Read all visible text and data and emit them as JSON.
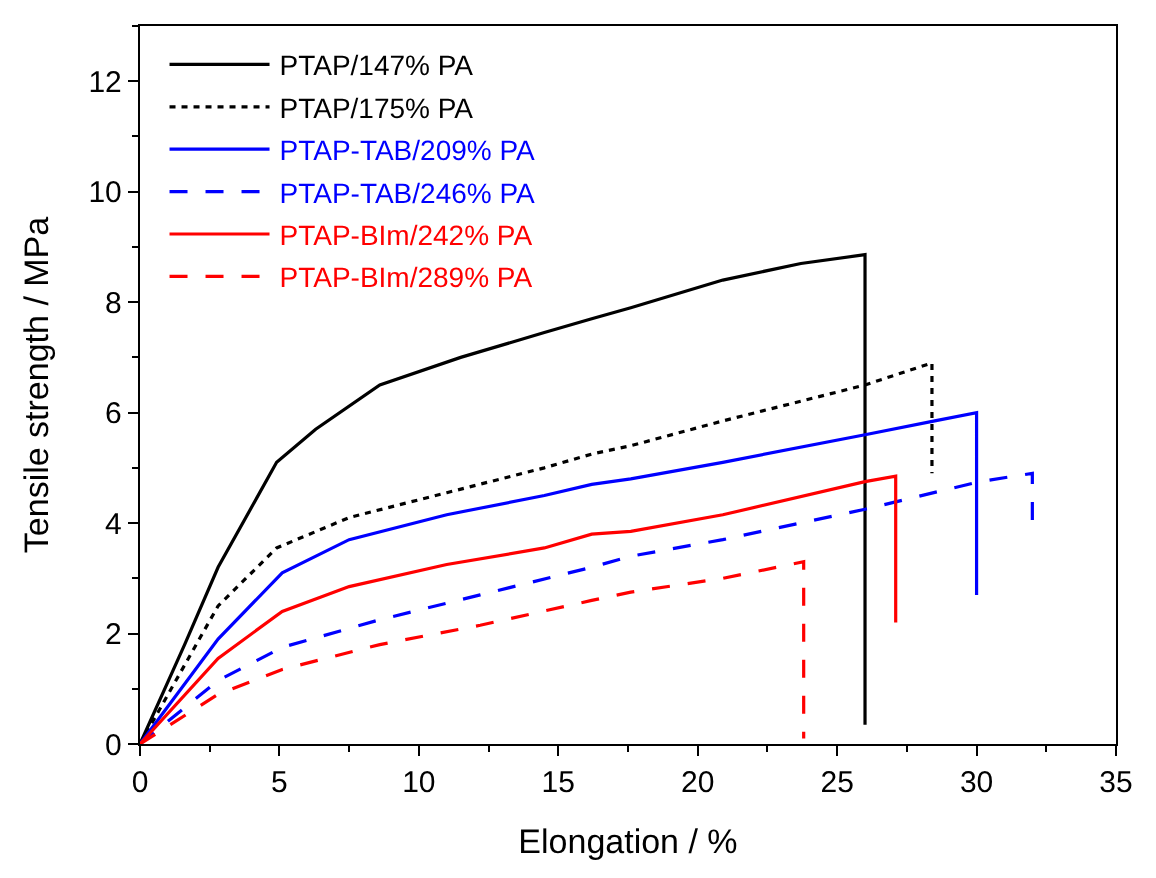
{
  "chart_data": {
    "type": "line",
    "xlabel": "Elongation / %",
    "ylabel": "Tensile strength / MPa",
    "xlim": [
      0,
      35
    ],
    "xticks": [
      0,
      5,
      10,
      15,
      20,
      25,
      30,
      35
    ],
    "ylim": [
      0,
      13
    ],
    "yticks": [
      0,
      2,
      4,
      6,
      8,
      10,
      12
    ],
    "legend": "top left",
    "marker": "none",
    "series": [
      {
        "name": "PTAP/147% PA",
        "color": "#000000",
        "line_style": "solid",
        "x": [
          0,
          1.6,
          2.8,
          4.9,
          6.3,
          8.6,
          11.5,
          14.5,
          16.2,
          17.6,
          20.9,
          23.7,
          26.0,
          26.0
        ],
        "values": [
          0,
          1.8,
          3.2,
          5.1,
          5.7,
          6.5,
          7.0,
          7.45,
          7.7,
          7.9,
          8.4,
          8.7,
          8.86,
          0.35
        ]
      },
      {
        "name": "PTAP/175% PA",
        "color": "#000000",
        "line_style": "dotted",
        "x": [
          0,
          2.8,
          4.9,
          7.5,
          11.0,
          14.5,
          16.2,
          17.6,
          20.9,
          26.0,
          28.4,
          28.4
        ],
        "values": [
          0,
          2.5,
          3.55,
          4.1,
          4.55,
          5.0,
          5.25,
          5.4,
          5.85,
          6.5,
          6.9,
          4.9
        ]
      },
      {
        "name": "PTAP-TAB/209% PA",
        "color": "#0000ff",
        "line_style": "solid",
        "x": [
          0,
          2.8,
          5.1,
          7.5,
          11.0,
          14.5,
          16.2,
          17.6,
          20.9,
          26.0,
          28.5,
          30.0,
          30.0
        ],
        "values": [
          0,
          1.9,
          3.1,
          3.7,
          4.15,
          4.5,
          4.7,
          4.8,
          5.1,
          5.6,
          5.85,
          6.0,
          2.7
        ]
      },
      {
        "name": "PTAP-TAB/246% PA",
        "color": "#0000ff",
        "line_style": "dashed",
        "x": [
          0,
          2.8,
          5.1,
          8.6,
          12.2,
          16.2,
          17.6,
          20.9,
          26.0,
          30.1,
          32.0,
          32.0
        ],
        "values": [
          0,
          1.15,
          1.75,
          2.25,
          2.7,
          3.2,
          3.4,
          3.7,
          4.25,
          4.75,
          4.9,
          4.0
        ]
      },
      {
        "name": "PTAP-BIm/242% PA",
        "color": "#ff0000",
        "line_style": "solid",
        "x": [
          0,
          2.8,
          5.1,
          7.5,
          11.0,
          14.5,
          16.2,
          17.6,
          20.9,
          26.0,
          27.1,
          27.1
        ],
        "values": [
          0,
          1.55,
          2.4,
          2.85,
          3.25,
          3.55,
          3.8,
          3.85,
          4.15,
          4.75,
          4.85,
          2.2
        ]
      },
      {
        "name": "PTAP-BIm/289% PA",
        "color": "#ff0000",
        "line_style": "dashed",
        "x": [
          0,
          2.8,
          5.1,
          8.6,
          12.2,
          16.2,
          17.6,
          20.9,
          23.8,
          23.8
        ],
        "values": [
          0,
          0.9,
          1.35,
          1.8,
          2.15,
          2.6,
          2.75,
          3.0,
          3.3,
          0.1
        ]
      }
    ]
  }
}
